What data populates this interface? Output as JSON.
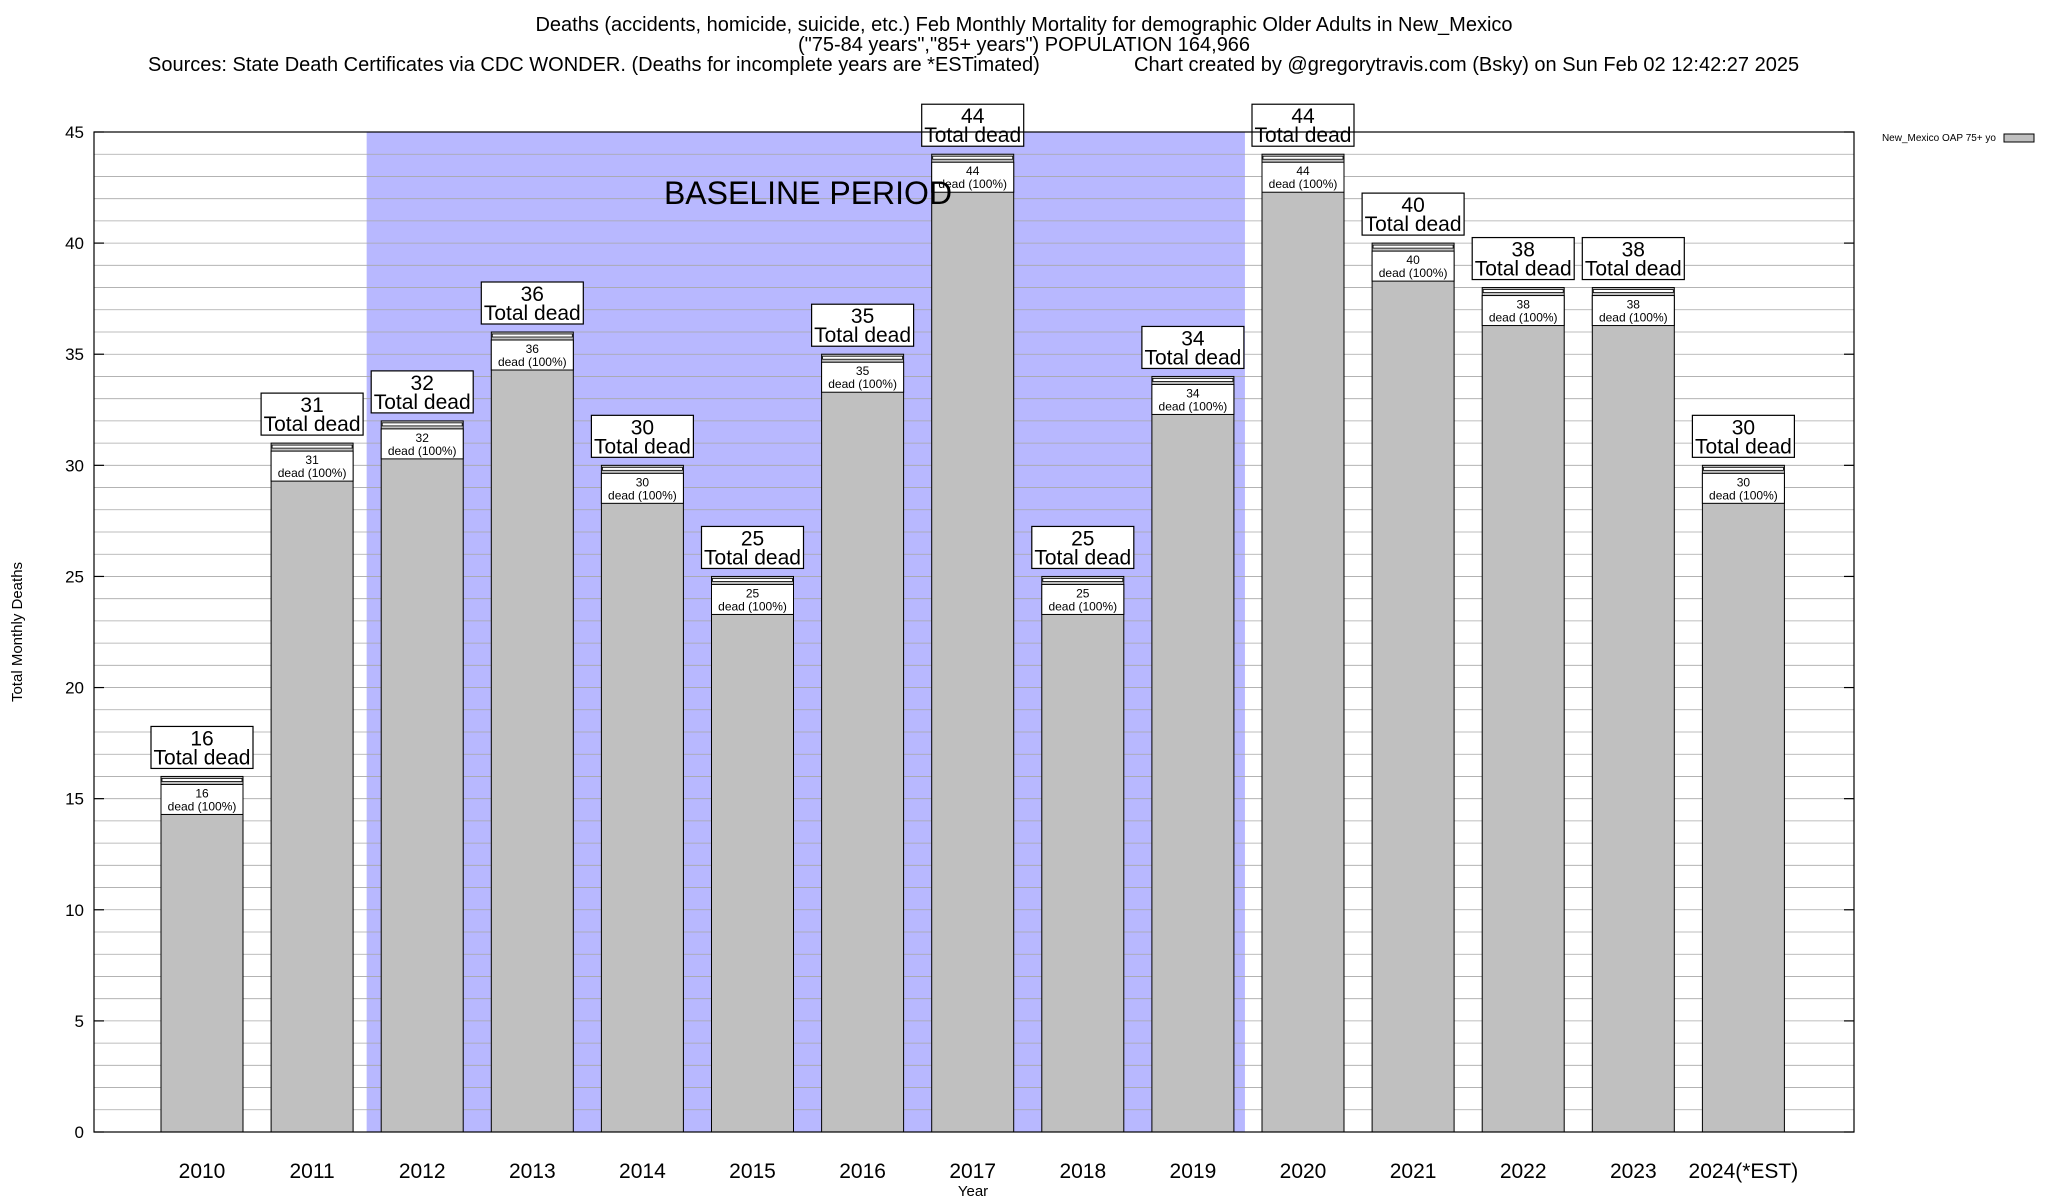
{
  "header": {
    "title": "Deaths (accidents, homicide, suicide, etc.) Feb Monthly Mortality for demographic Older Adults in New_Mexico",
    "subtitle": "(\"75-84 years\",\"85+ years\") POPULATION 164,966",
    "sources": "Sources: State Death Certificates via CDC WONDER. (Deaths for incomplete years are *ESTimated)",
    "credit": "Chart created by @gregorytravis.com (Bsky) on Sun Feb 02 12:42:27 2025"
  },
  "chart_data": {
    "type": "bar",
    "categories": [
      "2010",
      "2011",
      "2012",
      "2013",
      "2014",
      "2015",
      "2016",
      "2017",
      "2018",
      "2019",
      "2020",
      "2021",
      "2022",
      "2023",
      "2024(*EST)"
    ],
    "series": [
      {
        "name": "New_Mexico OAP 75+ yo",
        "values": [
          16,
          31,
          32,
          36,
          30,
          25,
          35,
          44,
          25,
          34,
          44,
          40,
          38,
          38,
          30
        ],
        "color": "#c0c0c0"
      }
    ],
    "xlabel": "Year",
    "ylabel": "Total Monthly Deaths",
    "ylim": [
      0,
      45
    ],
    "yticks": [
      0,
      5,
      10,
      15,
      20,
      25,
      30,
      35,
      40,
      45
    ],
    "minor_gridline_step": 1,
    "grid": true,
    "legend_position": "top-right",
    "total_label_suffix": "Total dead",
    "inner_label_suffix": "dead (100%)",
    "baseline": {
      "label": "BASELINE PERIOD",
      "start": "2012",
      "end": "2019",
      "color": "#b8b8ff"
    }
  }
}
